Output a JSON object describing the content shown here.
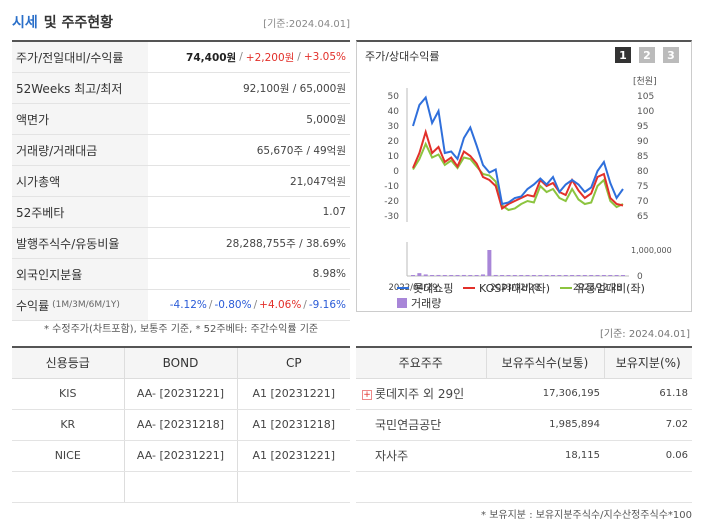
{
  "header": {
    "title_main": "시세",
    "title_rest": "및 주주현황",
    "date": "[기준:2024.04.01]"
  },
  "market": {
    "rows": [
      {
        "label": "주가/전일대비/수익률"
      },
      {
        "label": "52Weeks 최고/최저",
        "value": "92,100원 / 65,000원"
      },
      {
        "label": "액면가",
        "value": "5,000원"
      },
      {
        "label": "거래량/거래대금",
        "value": "65,670주 / 49억원"
      },
      {
        "label": "시가총액",
        "value": "21,047억원"
      },
      {
        "label": "52주베타",
        "value": "1.07"
      },
      {
        "label": "발행주식수/유동비율",
        "value": "28,288,755주 / 38.69%"
      },
      {
        "label": "외국인지분율",
        "value": "8.98%"
      },
      {
        "label": "수익률",
        "sub": "(1M/3M/6M/1Y)"
      }
    ],
    "price": "74,400원",
    "change": "+2,200원",
    "change_pct": "+3.05%",
    "returns": [
      "-4.12%",
      "-0.80%",
      "+4.06%",
      "-9.16%"
    ],
    "sep": "/"
  },
  "note1": "* 수정주가(차트포함), 보통주 기준, * 52주베타: 주간수익률 기준",
  "chart_panel": {
    "title": "주가/상대수익률",
    "pages": [
      "1",
      "2",
      "3"
    ],
    "unit": "[천원]",
    "legend": [
      "롯데쇼핑",
      "KOSPI대비(좌)",
      "유통업대비(좌)",
      "거래량"
    ]
  },
  "chart_data": {
    "type": "line",
    "x_labels": [
      "2022/04/29",
      "2023/02/28",
      "2023/12/28"
    ],
    "left_axis_ticks": [
      "50",
      "40",
      "30",
      "20",
      "10",
      "0",
      "-10",
      "-20",
      "-30"
    ],
    "right_axis_ticks": [
      "105",
      "100",
      "95",
      "90",
      "85",
      "80",
      "75",
      "70",
      "65"
    ],
    "volume_ticks": [
      "1,000,000",
      "0"
    ],
    "ylim_left": [
      -30,
      50
    ],
    "series": [
      {
        "name": "롯데쇼핑",
        "color": "#2f6fdb",
        "values": [
          30,
          44,
          49,
          32,
          40,
          12,
          13,
          8,
          22,
          29,
          17,
          4,
          -1,
          1,
          -22,
          -21,
          -18,
          -17,
          -12,
          -9,
          -5,
          -9,
          -4,
          -14,
          -9,
          -6,
          -9,
          -14,
          -11,
          0,
          6,
          -8,
          -18,
          -12
        ]
      },
      {
        "name": "KOSPI대비(좌)",
        "color": "#e2302a",
        "values": [
          2,
          12,
          26,
          12,
          16,
          6,
          9,
          3,
          13,
          10,
          5,
          -4,
          -6,
          -10,
          -25,
          -22,
          -20,
          -18,
          -16,
          -17,
          -6,
          -10,
          -8,
          -14,
          -16,
          -6,
          -13,
          -18,
          -15,
          -4,
          -2,
          -18,
          -22,
          -23
        ]
      },
      {
        "name": "유통업대비(좌)",
        "color": "#8cc43f",
        "values": [
          1,
          8,
          18,
          9,
          11,
          4,
          7,
          2,
          9,
          8,
          3,
          -2,
          -3,
          -7,
          -23,
          -26,
          -25,
          -22,
          -20,
          -21,
          -10,
          -14,
          -12,
          -18,
          -20,
          -12,
          -19,
          -22,
          -21,
          -10,
          -6,
          -20,
          -24,
          -22
        ]
      },
      {
        "name": "거래량",
        "color": "#a886d8",
        "values": [
          30000,
          110000,
          60000,
          30000,
          40000,
          20000,
          30000,
          20000,
          40000,
          30000,
          20000,
          60000,
          1000000,
          40000,
          30000,
          20000,
          20000,
          30000,
          20000,
          30000,
          20000,
          20000,
          30000,
          30000,
          20000,
          30000,
          20000,
          20000,
          20000,
          30000,
          20000,
          20000,
          20000,
          20000
        ]
      }
    ]
  },
  "date2": "[기준: 2024.04.01]",
  "credit": {
    "headers": [
      "신용등급",
      "BOND",
      "CP"
    ],
    "rows": [
      [
        "KIS",
        "AA-  [20231221]",
        "A1  [20231221]"
      ],
      [
        "KR",
        "AA-  [20231218]",
        "A1  [20231218]"
      ],
      [
        "NICE",
        "AA-  [20231221]",
        "A1  [20231221]"
      ],
      [
        "",
        "",
        ""
      ]
    ]
  },
  "shareholders": {
    "headers": [
      "주요주주",
      "보유주식수(보통)",
      "보유지분(%)"
    ],
    "rows": [
      {
        "name": "롯데지주 외 29인",
        "shares": "17,306,195",
        "pct": "61.18",
        "expand": "+"
      },
      {
        "name": "국민연금공단",
        "shares": "1,985,894",
        "pct": "7.02",
        "expand": ""
      },
      {
        "name": "자사주",
        "shares": "18,115",
        "pct": "0.06",
        "expand": ""
      },
      {
        "name": "",
        "shares": "",
        "pct": "",
        "expand": ""
      }
    ]
  },
  "note2": "* 보유지분 : 보유지분주식수/지수산정주식수*100"
}
